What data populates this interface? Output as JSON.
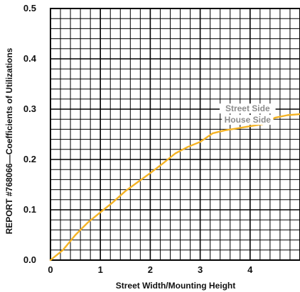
{
  "chart_data": {
    "type": "line",
    "title": "",
    "xlabel": "Street Width/Mounting Height",
    "ylabel": "REPORT #768066—Coefficients of Utilizations",
    "xlim": [
      0,
      5
    ],
    "ylim": [
      0,
      0.5
    ],
    "grid": true,
    "x_ticks": [
      "0",
      "1",
      "2",
      "3",
      "4"
    ],
    "y_ticks": [
      "0.0",
      "0.1",
      "0.2",
      "0.3",
      "0.4",
      "0.5"
    ],
    "series": [
      {
        "name": "Street Side",
        "color": "#9a9a9a",
        "x": [],
        "y": []
      },
      {
        "name": "House Side",
        "color": "#f5b324",
        "x": [
          0,
          0.25,
          0.5,
          0.75,
          1.0,
          1.25,
          1.5,
          1.75,
          2.0,
          2.25,
          2.5,
          2.75,
          3.0,
          3.25,
          3.5,
          3.75,
          4.0,
          4.25,
          4.5,
          4.75,
          5.0
        ],
        "y": [
          0.0,
          0.02,
          0.05,
          0.075,
          0.095,
          0.115,
          0.137,
          0.155,
          0.173,
          0.192,
          0.212,
          0.225,
          0.235,
          0.252,
          0.258,
          0.262,
          0.266,
          0.27,
          0.283,
          0.288,
          0.29
        ]
      }
    ]
  },
  "colors": {
    "grid": "#000000",
    "curve": "#f5b324",
    "label_text": "#8c8c8c"
  }
}
